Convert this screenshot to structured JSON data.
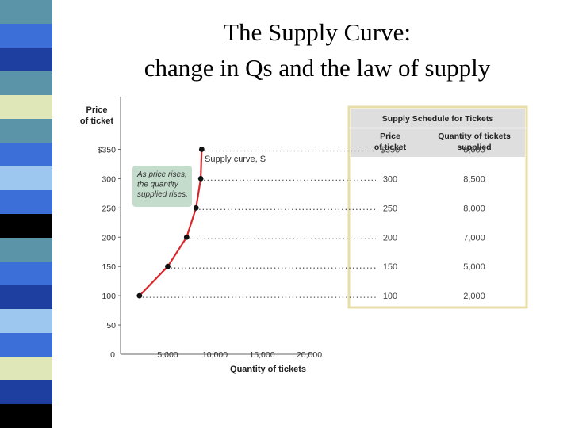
{
  "title_line1": "The Supply Curve:",
  "title_line2": "change in Qs and the law of supply",
  "colors": {
    "curve": "#d9262b",
    "table_border": "#e8dfa8",
    "table_header_bg": "#dedede",
    "callout_bg": "#c4dccb"
  },
  "stripe_colors": [
    "#5b93a8",
    "#3d6fd8",
    "#1e3fa0",
    "#5b93a8",
    "#dfe6b8",
    "#5b93a8",
    "#3d6fd8",
    "#9ec7f0",
    "#3d6fd8",
    "#000000",
    "#5b93a8",
    "#3d6fd8",
    "#1e3fa0",
    "#9ec7f0",
    "#3d6fd8",
    "#dfe6b8",
    "#1e3fa0",
    "#000000"
  ],
  "chart_data": {
    "type": "line",
    "xlabel": "Quantity of tickets",
    "ylabel_line1": "Price",
    "ylabel_line2": "of ticket",
    "x_ticks": [
      {
        "v": 0,
        "label": "0"
      },
      {
        "v": 5000,
        "label": "5,000"
      },
      {
        "v": 10000,
        "label": "10,000"
      },
      {
        "v": 15000,
        "label": "15,000"
      },
      {
        "v": 20000,
        "label": "20,000"
      }
    ],
    "y_ticks": [
      {
        "v": 50,
        "label": "50"
      },
      {
        "v": 100,
        "label": "100"
      },
      {
        "v": 150,
        "label": "150"
      },
      {
        "v": 200,
        "label": "200"
      },
      {
        "v": 250,
        "label": "250"
      },
      {
        "v": 300,
        "label": "300"
      },
      {
        "v": 350,
        "label": "$350"
      }
    ],
    "xlim": [
      0,
      20000
    ],
    "ylim": [
      0,
      375
    ],
    "series": [
      {
        "name": "Supply curve, S",
        "points": [
          {
            "x": 2000,
            "y": 100
          },
          {
            "x": 5000,
            "y": 150
          },
          {
            "x": 7000,
            "y": 200
          },
          {
            "x": 8000,
            "y": 250
          },
          {
            "x": 8500,
            "y": 300
          },
          {
            "x": 8600,
            "y": 350
          }
        ]
      }
    ],
    "annotation": [
      "As price rises,",
      "the quantity",
      "supplied rises."
    ],
    "table": {
      "title": "Supply Schedule for Tickets",
      "col1_header": [
        "Price",
        "of ticket"
      ],
      "col2_header": [
        "Quantity of tickets",
        "supplied"
      ],
      "rows": [
        {
          "price": "$350",
          "qty": "8,600"
        },
        {
          "price": "300",
          "qty": "8,500"
        },
        {
          "price": "250",
          "qty": "8,000"
        },
        {
          "price": "200",
          "qty": "7,000"
        },
        {
          "price": "150",
          "qty": "5,000"
        },
        {
          "price": "100",
          "qty": "2,000"
        }
      ]
    }
  }
}
